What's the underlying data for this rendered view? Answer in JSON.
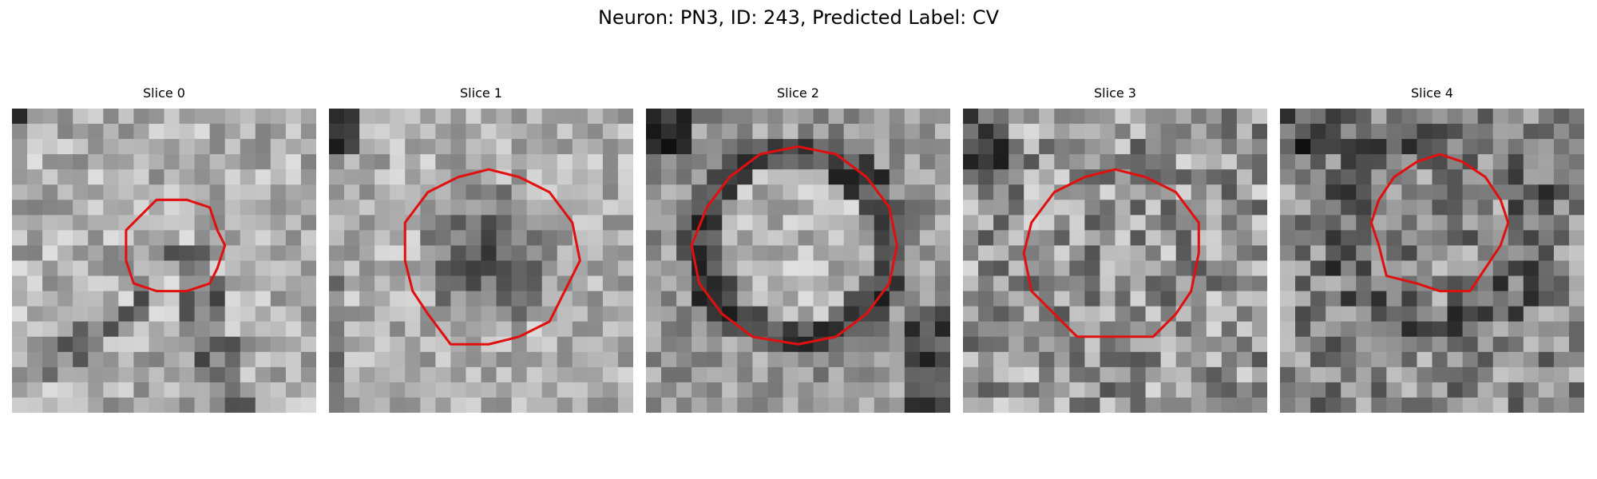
{
  "figure": {
    "title": "Neuron: PN3, ID: 243, Predicted Label: CV"
  },
  "contour_color": "#e01010",
  "panels": [
    {
      "title": "Slice 0"
    },
    {
      "title": "Slice 1"
    },
    {
      "title": "Slice 2"
    },
    {
      "title": "Slice 3"
    },
    {
      "title": "Slice 4"
    }
  ]
}
